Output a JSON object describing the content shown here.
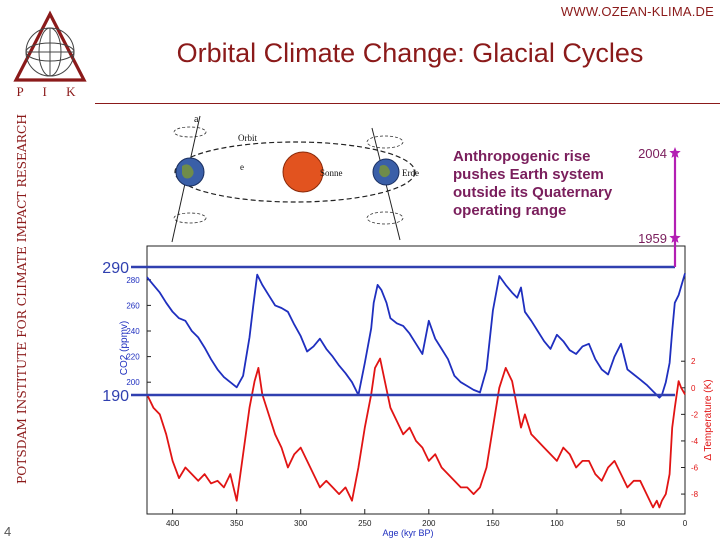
{
  "header": {
    "site_url": "WWW.OZEAN-KLIMA.DE",
    "title": "Orbital Climate Change: Glacial Cycles"
  },
  "logo": {
    "letters": "P I K",
    "color": "#8b1a1a"
  },
  "sidebar": {
    "institute_text": "POTSDAM INSTITUTE FOR CLIMATE IMPACT RESEARCH"
  },
  "slide_number": "4",
  "orbit_diagram": {
    "label_a": "a",
    "label_orbit": "Orbit",
    "label_e": "e",
    "label_sun": "Sonne",
    "label_earth": "Erde"
  },
  "annotation": {
    "lines": [
      "Anthropogenic rise",
      "pushes Earth system",
      "outside its Quaternary",
      "operating range"
    ]
  },
  "colors": {
    "co2": "#1f2fbf",
    "temperature": "#e11414",
    "reference_line": "#3040b0",
    "anthropogenic": "#b31fb3",
    "title": "#8b1a1a"
  },
  "chart_data": {
    "type": "line",
    "xlabel": "Age (kyr BP)",
    "x_reversed": true,
    "xlim": [
      420,
      0
    ],
    "x_ticks": [
      "400",
      "350",
      "300",
      "250",
      "200",
      "150",
      "100",
      "50",
      "0"
    ],
    "x_tick_values": [
      400,
      350,
      300,
      250,
      200,
      150,
      100,
      50,
      0
    ],
    "ylabel_left": "CO2 (ppmv)",
    "ylim_left": [
      185,
      300
    ],
    "y_ticks_left": [
      "280",
      "260",
      "240",
      "220",
      "200"
    ],
    "y_tick_values_left": [
      280,
      260,
      240,
      220,
      200
    ],
    "ylabel_right": "Δ Temperature (K)",
    "ylim_right": [
      -9.5,
      4.5
    ],
    "y_ticks_right": [
      "2",
      "0",
      "-2",
      "-4",
      "-6",
      "-8"
    ],
    "y_tick_values_right": [
      2,
      0,
      -2,
      -4,
      -6,
      -8
    ],
    "reference_lines": [
      {
        "label": "290",
        "value": 290
      },
      {
        "label": "190",
        "value": 190
      }
    ],
    "anthropogenic_points": [
      {
        "label": "2004",
        "value": 377
      },
      {
        "label": "1959",
        "value": 316
      }
    ],
    "series": [
      {
        "axis": "left",
        "x": [
          420,
          415,
          410,
          405,
          400,
          395,
          390,
          385,
          380,
          375,
          370,
          365,
          360,
          355,
          350,
          345,
          340,
          337,
          334,
          330,
          325,
          320,
          315,
          310,
          305,
          300,
          295,
          290,
          285,
          280,
          275,
          270,
          265,
          260,
          255,
          250,
          245,
          243,
          240,
          237,
          233,
          230,
          225,
          220,
          215,
          210,
          205,
          200,
          195,
          190,
          185,
          180,
          175,
          170,
          165,
          160,
          155,
          150,
          145,
          140,
          135,
          131,
          128,
          125,
          120,
          115,
          110,
          105,
          100,
          95,
          90,
          85,
          80,
          75,
          70,
          65,
          60,
          55,
          50,
          45,
          40,
          35,
          30,
          25,
          22,
          20,
          18,
          15,
          12,
          10,
          8,
          5,
          3,
          0
        ],
        "values": [
          282,
          276,
          270,
          262,
          255,
          250,
          248,
          240,
          235,
          227,
          218,
          210,
          204,
          200,
          196,
          205,
          235,
          260,
          284,
          276,
          268,
          260,
          258,
          255,
          245,
          236,
          224,
          228,
          234,
          226,
          220,
          213,
          207,
          200,
          190,
          215,
          242,
          262,
          276,
          272,
          262,
          250,
          246,
          244,
          238,
          230,
          222,
          248,
          234,
          226,
          218,
          205,
          200,
          197,
          194,
          192,
          210,
          256,
          283,
          276,
          270,
          266,
          274,
          255,
          248,
          240,
          232,
          226,
          237,
          232,
          225,
          222,
          228,
          230,
          218,
          210,
          206,
          220,
          230,
          210,
          206,
          202,
          198,
          193,
          190,
          188,
          190,
          200,
          215,
          240,
          262,
          268,
          275,
          285
        ]
      },
      {
        "axis": "right",
        "x": [
          420,
          415,
          410,
          405,
          400,
          395,
          390,
          385,
          380,
          375,
          370,
          365,
          360,
          355,
          350,
          345,
          340,
          336,
          333,
          330,
          325,
          320,
          315,
          310,
          305,
          300,
          295,
          290,
          285,
          280,
          275,
          270,
          265,
          260,
          255,
          250,
          245,
          242,
          238,
          235,
          230,
          225,
          220,
          215,
          210,
          205,
          200,
          195,
          190,
          185,
          180,
          175,
          170,
          165,
          160,
          155,
          150,
          145,
          140,
          135,
          131,
          128,
          125,
          120,
          115,
          110,
          105,
          100,
          95,
          90,
          85,
          80,
          75,
          70,
          65,
          60,
          55,
          50,
          45,
          40,
          35,
          30,
          25,
          22,
          20,
          18,
          15,
          12,
          10,
          8,
          5,
          3,
          0
        ],
        "values": [
          -0.5,
          -1.5,
          -2,
          -3.5,
          -5.5,
          -6.8,
          -6,
          -6.5,
          -7,
          -6.5,
          -7.2,
          -7,
          -7.5,
          -6.5,
          -8.5,
          -5,
          -1.5,
          0.5,
          1.5,
          -0.5,
          -2,
          -3.5,
          -4.5,
          -6,
          -5,
          -4.5,
          -5.5,
          -6.5,
          -7.5,
          -7,
          -7.5,
          -8,
          -7.5,
          -8.5,
          -6,
          -3,
          -0.5,
          1.5,
          2.2,
          0.8,
          -1.5,
          -2.5,
          -3.5,
          -3,
          -4,
          -4.5,
          -5.5,
          -5,
          -6,
          -6.5,
          -7,
          -7.5,
          -7.5,
          -8,
          -7.5,
          -6,
          -3,
          0,
          1.5,
          0.5,
          -1.5,
          -3,
          -2,
          -3.5,
          -4,
          -4.5,
          -5,
          -5.5,
          -4.5,
          -5,
          -6,
          -5.5,
          -5.5,
          -6.5,
          -7,
          -6,
          -5.5,
          -6.5,
          -7.5,
          -7,
          -7,
          -8,
          -9,
          -8.5,
          -9,
          -8.5,
          -8,
          -6.5,
          -3,
          -1.5,
          0.5,
          0,
          -0.5
        ]
      }
    ]
  }
}
